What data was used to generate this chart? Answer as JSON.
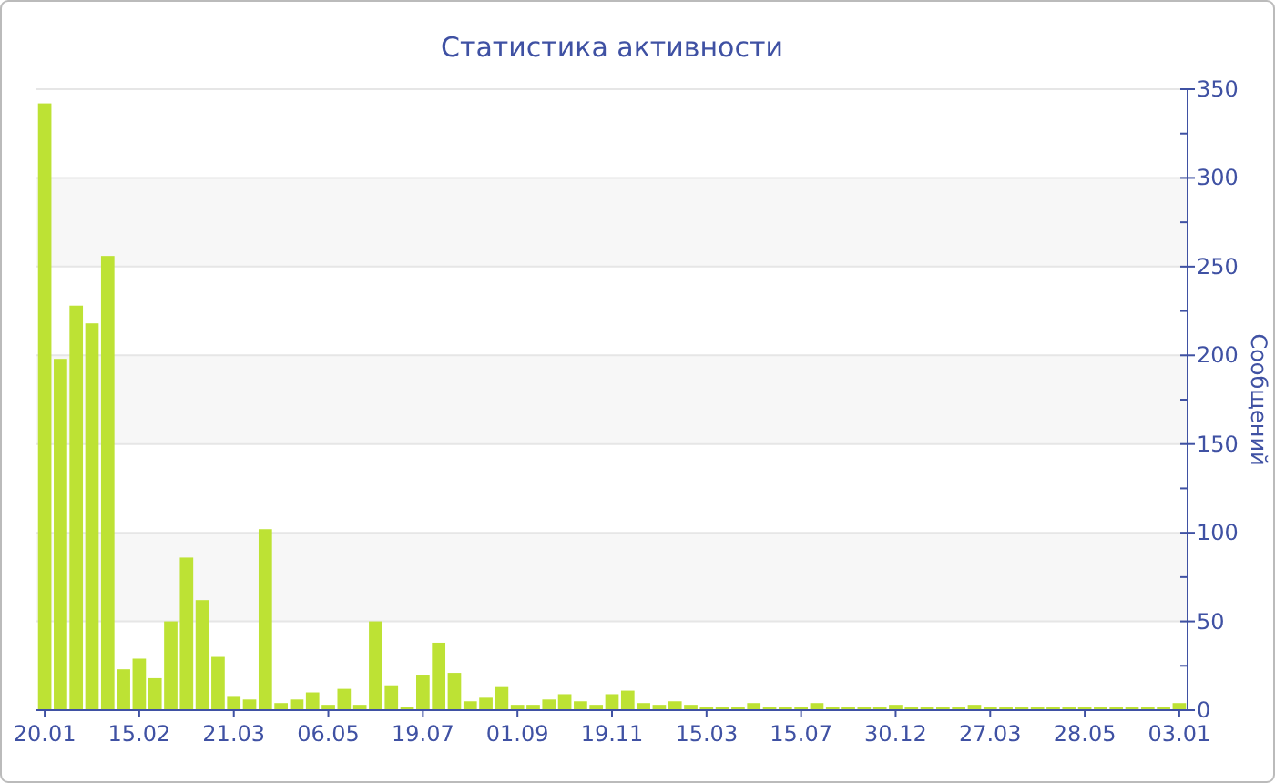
{
  "chart_data": {
    "type": "bar",
    "title": "Статистика активности",
    "ylabel": "Сообщений",
    "color": "#bde234",
    "categories": [
      "20.01",
      null,
      null,
      null,
      null,
      null,
      "15.02",
      null,
      null,
      null,
      null,
      null,
      "21.03",
      null,
      null,
      null,
      null,
      null,
      "06.05",
      null,
      null,
      null,
      null,
      null,
      "19.07",
      null,
      null,
      null,
      null,
      null,
      "01.09",
      null,
      null,
      null,
      null,
      null,
      "19.11",
      null,
      null,
      null,
      null,
      null,
      "15.03",
      null,
      null,
      null,
      null,
      null,
      "15.07",
      null,
      null,
      null,
      null,
      null,
      "30.12",
      null,
      null,
      null,
      null,
      null,
      "27.03",
      null,
      null,
      null,
      null,
      null,
      "28.05",
      null,
      null,
      null,
      null,
      null,
      "03.01"
    ],
    "values": [
      342,
      198,
      228,
      218,
      256,
      23,
      29,
      18,
      50,
      86,
      62,
      30,
      8,
      6,
      102,
      4,
      6,
      10,
      3,
      12,
      3,
      50,
      14,
      2,
      20,
      38,
      21,
      5,
      7,
      13,
      3,
      3,
      6,
      9,
      5,
      3,
      9,
      11,
      4,
      3,
      5,
      3,
      2,
      2,
      2,
      4,
      2,
      2,
      2,
      4,
      2,
      2,
      2,
      2,
      3,
      2,
      2,
      2,
      2,
      3,
      2,
      2,
      2,
      2,
      2,
      2,
      2,
      2,
      2,
      2,
      2,
      2,
      4
    ],
    "ylim": [
      0,
      350
    ],
    "yticks": [
      0,
      {
        "value": 25,
        "label": null
      },
      50,
      {
        "value": 75,
        "label": null
      },
      100,
      {
        "value": 125,
        "label": null
      },
      150,
      {
        "value": 175,
        "label": null
      },
      200,
      {
        "value": 225,
        "label": null
      },
      250,
      {
        "value": 275,
        "label": null
      },
      300,
      {
        "value": 325,
        "label": null
      },
      350
    ],
    "grid": "y"
  }
}
